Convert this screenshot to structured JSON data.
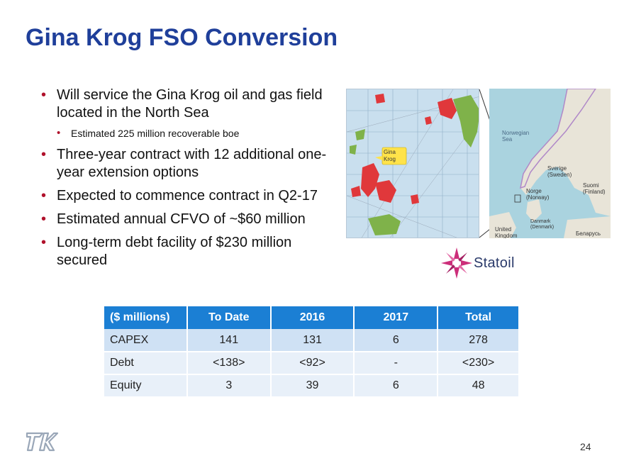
{
  "slide": {
    "title": "Gina Krog FSO Conversion",
    "page_number": "24"
  },
  "bullets": [
    {
      "level": 1,
      "text": "Will service the Gina Krog oil and gas field located in the North Sea"
    },
    {
      "level": 2,
      "text": "Estimated 225 million recoverable boe"
    },
    {
      "level": 1,
      "text": "Three-year contract with 12 additional one-year extension options"
    },
    {
      "level": 1,
      "text": "Expected to commence contract in Q2-17"
    },
    {
      "level": 1,
      "text": "Estimated annual CFVO of ~$60 million"
    },
    {
      "level": 1,
      "text": "Long-term debt facility of $230 million secured"
    }
  ],
  "field_map": {
    "callout": "Gina Krog"
  },
  "region_map": {
    "labels": {
      "norwegian_sea": "Norwegian Sea",
      "sverige": "Sverige",
      "sverige_sub": "(Sweden)",
      "norge": "Norge",
      "norge_sub": "(Norway)",
      "suomi": "Suomi",
      "suomi_sub": "(Finland)",
      "danmark": "Danmark",
      "danmark_sub": "(Denmark)",
      "uk": "United Kingdom",
      "belarus": "Беларусь"
    }
  },
  "statoil_logo": {
    "text": "Statoil",
    "color": "#cc2e7a"
  },
  "table": {
    "headers": [
      "($ millions)",
      "To Date",
      "2016",
      "2017",
      "Total"
    ],
    "rows": [
      [
        "CAPEX",
        "141",
        "131",
        "6",
        "278"
      ],
      [
        "Debt",
        "<138>",
        "<92>",
        "-",
        "<230>"
      ],
      [
        "Equity",
        "3",
        "39",
        "6",
        "48"
      ]
    ],
    "header_color": "#1b7fd4"
  },
  "colors": {
    "title": "#1f3f9a",
    "bullet": "#b0112b"
  }
}
